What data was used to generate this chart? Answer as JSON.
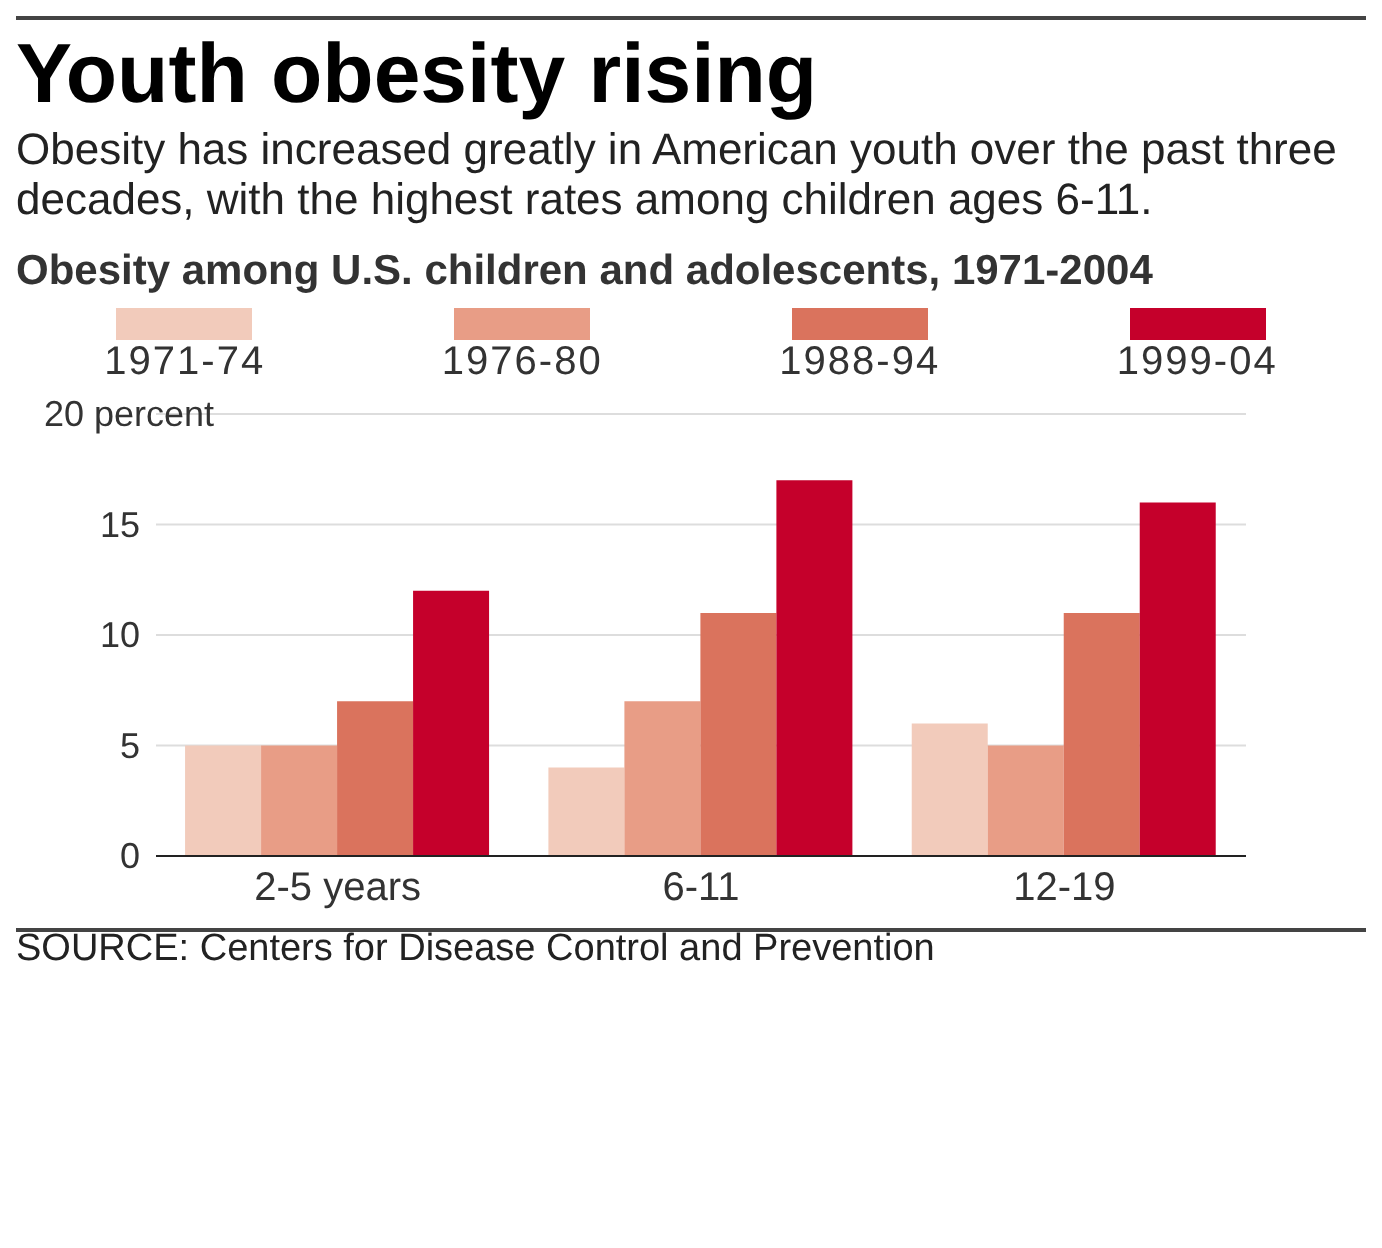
{
  "chart_data": {
    "type": "bar",
    "title": "Youth obesity rising",
    "subtitle": "Obesity has increased greatly in American youth over the past three decades, with the highest rates among children ages 6-11.",
    "annotations": [
      "Obesity among U.S. children and adolescents, 1971-2004",
      "SOURCE: Centers for Disease Control and Prevention"
    ],
    "categories": [
      "2-5 years",
      "6-11",
      "12-19"
    ],
    "series": [
      {
        "name": "1971-74",
        "color": "#f2cbbb",
        "values": [
          5,
          4,
          6
        ]
      },
      {
        "name": "1976-80",
        "color": "#e89d86",
        "values": [
          5,
          7,
          5
        ]
      },
      {
        "name": "1988-94",
        "color": "#da735d",
        "values": [
          7,
          11,
          11
        ]
      },
      {
        "name": "1999-04",
        "color": "#c5002b",
        "values": [
          12,
          17,
          16
        ]
      }
    ],
    "ylim": [
      0,
      20
    ],
    "yticks": [
      0,
      5,
      10,
      15,
      {
        "value": 20,
        "label": "20 percent"
      }
    ],
    "grid": "y",
    "legend": "top"
  }
}
